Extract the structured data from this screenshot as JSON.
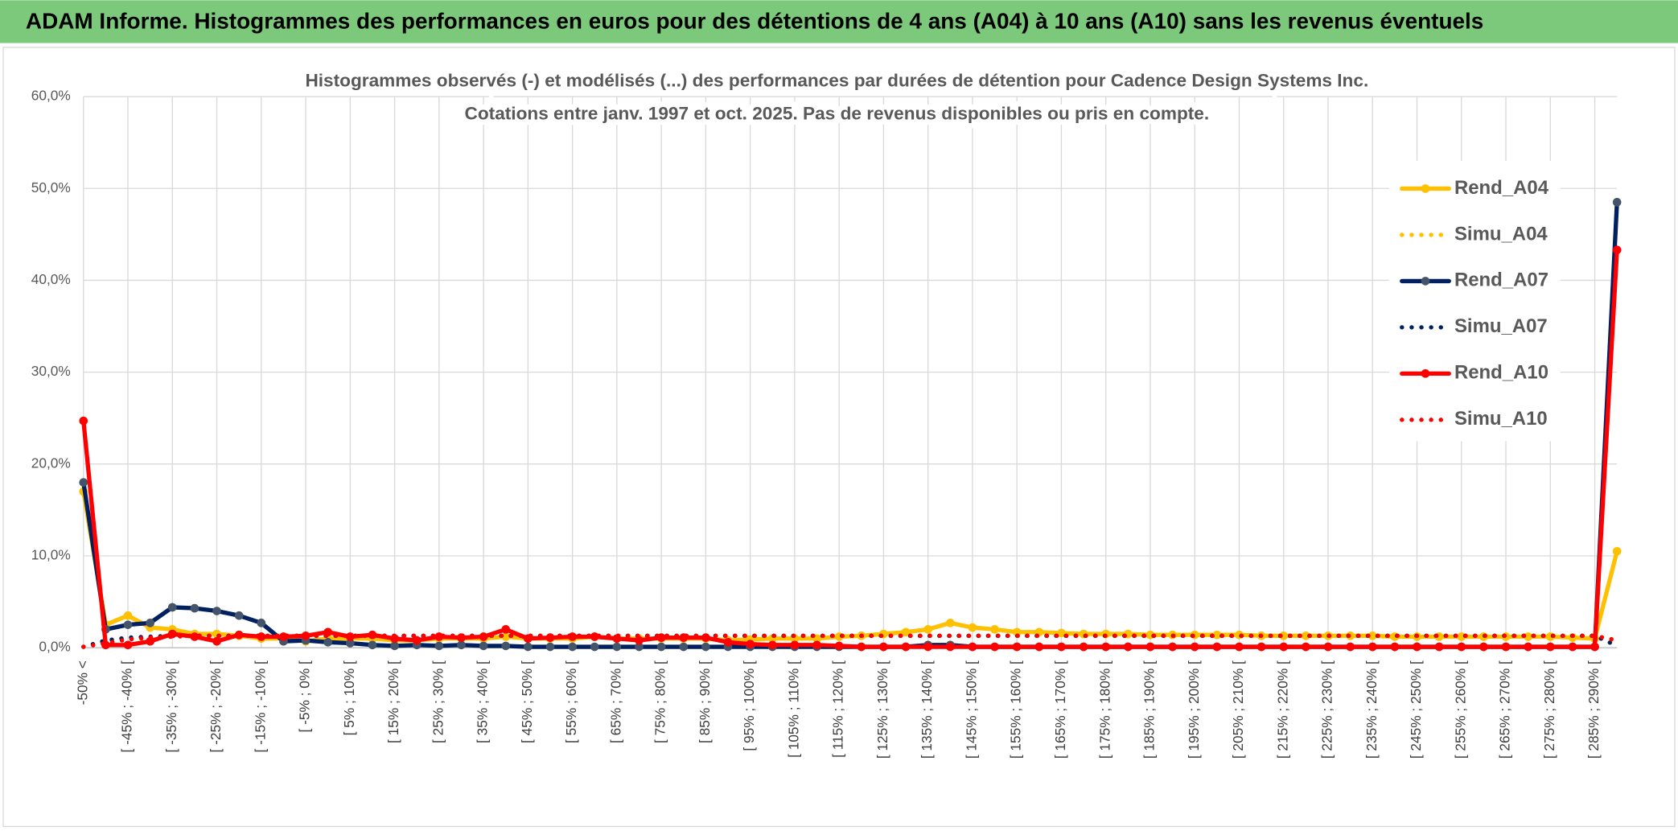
{
  "header": {
    "title": "ADAM Informe. Histogrammes des performances en euros pour des détentions de 4 ans (A04) à 10 ans (A10) sans les revenus éventuels"
  },
  "chart_data": {
    "type": "line",
    "title": "Histogrammes observés (-) et modélisés (...) des performances par durées de détention pour Cadence Design Systems Inc.",
    "subtitle": "Cotations entre janv. 1997 et oct. 2025. Pas de revenus disponibles ou pris en compte.",
    "categories": [
      "-50% <",
      null,
      "[ -45% ; -40% [",
      null,
      "[ -35% ; -30% [",
      null,
      "[ -25% ; -20% [",
      null,
      "[ -15% ; -10% [",
      null,
      "[ -5% ; 0% [",
      null,
      "[ 5% ; 10% [",
      null,
      "[ 15% ; 20% [",
      null,
      "[ 25% ; 30% [",
      null,
      "[ 35% ; 40% [",
      null,
      "[ 45% ; 50% [",
      null,
      "[ 55% ; 60% [",
      null,
      "[ 65% ; 70% [",
      null,
      "[ 75% ; 80% [",
      null,
      "[ 85% ; 90% [",
      null,
      "[ 95% ; 100% [",
      null,
      "[ 105% ; 110% [",
      null,
      "[ 115% ; 120% [",
      null,
      "[ 125% ; 130% [",
      null,
      "[ 135% ; 140% [",
      null,
      "[ 145% ; 150% [",
      null,
      "[ 155% ; 160% [",
      null,
      "[ 165% ; 170% [",
      null,
      "[ 175% ; 180% [",
      null,
      "[ 185% ; 190% [",
      null,
      "[ 195% ; 200% [",
      null,
      "[ 205% ; 210% [",
      null,
      "[ 215% ; 220% [",
      null,
      "[ 225% ; 230% [",
      null,
      "[ 235% ; 240% [",
      null,
      "[ 245% ; 250% [",
      null,
      "[ 255% ; 260% [",
      null,
      "[ 265% ; 270% [",
      null,
      "[ 275% ; 280% [",
      null,
      "[ 285% ; 290% [",
      null
    ],
    "series": [
      {
        "name": "Rend_A04",
        "color": "#FFC000",
        "dotted": false,
        "values": [
          17,
          2.5,
          3.5,
          2.2,
          2,
          1.5,
          1.5,
          1.3,
          1,
          1,
          0.7,
          1,
          1,
          1,
          0.8,
          0.8,
          1,
          1,
          1,
          1.2,
          1,
          1,
          1,
          1.2,
          1,
          1,
          1,
          1,
          1,
          0.8,
          0.9,
          1,
          1,
          1,
          1.2,
          1.3,
          1.5,
          1.7,
          2,
          2.7,
          2.2,
          2,
          1.7,
          1.7,
          1.6,
          1.5,
          1.5,
          1.5,
          1.4,
          1.4,
          1.4,
          1.4,
          1.4,
          1.3,
          1.3,
          1.3,
          1.3,
          1.3,
          1.3,
          1.2,
          1.2,
          1.2,
          1.2,
          1.2,
          1.2,
          1.2,
          1.2,
          1.1,
          1,
          10.5
        ]
      },
      {
        "name": "Simu_A04",
        "color": "#FFC000",
        "dotted": true,
        "values": [
          0.1,
          0.7,
          1,
          1.1,
          1.2,
          1.3,
          1.3,
          1.3,
          1.3,
          1.3,
          1.3,
          1.3,
          1.3,
          1.3,
          1.3,
          1.3,
          1.3,
          1.3,
          1.3,
          1.3,
          1.3,
          1.3,
          1.3,
          1.3,
          1.3,
          1.3,
          1.3,
          1.3,
          1.3,
          1.3,
          1.3,
          1.3,
          1.3,
          1.3,
          1.3,
          1.3,
          1.3,
          1.3,
          1.3,
          1.3,
          1.3,
          1.3,
          1.3,
          1.3,
          1.3,
          1.3,
          1.3,
          1.3,
          1.3,
          1.3,
          1.3,
          1.3,
          1.3,
          1.3,
          1.3,
          1.3,
          1.3,
          1.3,
          1.3,
          1.3,
          1.3,
          1.3,
          1.3,
          1.3,
          1.3,
          1.3,
          1.3,
          1.3,
          1.3,
          0.3
        ]
      },
      {
        "name": "Rend_A07",
        "color": "#002060",
        "marker": "#44546A",
        "dotted": false,
        "values": [
          18,
          2,
          2.5,
          2.7,
          4.4,
          4.3,
          4,
          3.5,
          2.7,
          0.7,
          0.8,
          0.6,
          0.5,
          0.3,
          0.2,
          0.3,
          0.2,
          0.3,
          0.2,
          0.2,
          0.1,
          0.1,
          0.1,
          0.1,
          0.1,
          0.1,
          0.1,
          0.1,
          0.1,
          0.1,
          0.1,
          0.1,
          0.1,
          0.1,
          0.1,
          0.1,
          0.1,
          0.1,
          0.3,
          0.3,
          0.1,
          0.1,
          0.1,
          0.1,
          0.1,
          0.1,
          0.1,
          0.1,
          0.1,
          0.1,
          0.1,
          0.1,
          0.1,
          0.1,
          0.1,
          0.1,
          0.1,
          0.1,
          0.1,
          0.1,
          0.1,
          0.1,
          0.1,
          0.1,
          0.1,
          0.1,
          0.1,
          0.1,
          0.1,
          48.5
        ]
      },
      {
        "name": "Simu_A07",
        "color": "#002060",
        "dotted": true,
        "values": [
          0.1,
          0.8,
          1.1,
          1.2,
          1.3,
          1.3,
          1.3,
          1.3,
          1.3,
          1.3,
          1.3,
          1.3,
          1.3,
          1.3,
          1.3,
          1.3,
          1.3,
          1.3,
          1.3,
          1.3,
          1.3,
          1.3,
          1.3,
          1.3,
          1.3,
          1.3,
          1.3,
          1.3,
          1.3,
          1.3,
          1.3,
          1.3,
          1.3,
          1.3,
          1.3,
          1.3,
          1.3,
          1.3,
          1.3,
          1.3,
          1.3,
          1.3,
          1.3,
          1.3,
          1.3,
          1.3,
          1.3,
          1.3,
          1.3,
          1.3,
          1.3,
          1.3,
          1.3,
          1.3,
          1.3,
          1.3,
          1.3,
          1.3,
          1.3,
          1.3,
          1.3,
          1.3,
          1.3,
          1.3,
          1.3,
          1.3,
          1.3,
          1.3,
          1.3,
          0.2
        ]
      },
      {
        "name": "Rend_A10",
        "color": "#FF0000",
        "dotted": false,
        "values": [
          24.7,
          0.3,
          0.3,
          0.7,
          1.5,
          1.2,
          0.7,
          1.4,
          1.2,
          1.2,
          1.3,
          1.7,
          1.2,
          1.4,
          1,
          0.8,
          1.2,
          1.1,
          1.2,
          2,
          1,
          1.1,
          1.2,
          1.2,
          1,
          0.8,
          1.1,
          1.1,
          1.1,
          0.6,
          0.4,
          0.3,
          0.3,
          0.3,
          0.2,
          0.1,
          0.1,
          0.1,
          0.1,
          0.1,
          0.1,
          0.1,
          0.1,
          0.1,
          0.1,
          0.1,
          0.1,
          0.1,
          0.1,
          0.1,
          0.1,
          0.1,
          0.1,
          0.1,
          0.1,
          0.1,
          0.1,
          0.1,
          0.1,
          0.1,
          0.1,
          0.1,
          0.1,
          0.1,
          0.1,
          0.1,
          0.1,
          0.1,
          0.1,
          43.3
        ]
      },
      {
        "name": "Simu_A10",
        "color": "#FF0000",
        "dotted": true,
        "values": [
          0.1,
          0.5,
          0.9,
          1.1,
          1.2,
          1.3,
          1.3,
          1.3,
          1.3,
          1.3,
          1.3,
          1.3,
          1.3,
          1.3,
          1.3,
          1.3,
          1.3,
          1.3,
          1.3,
          1.3,
          1.3,
          1.3,
          1.3,
          1.3,
          1.3,
          1.3,
          1.3,
          1.3,
          1.3,
          1.3,
          1.3,
          1.3,
          1.3,
          1.3,
          1.3,
          1.3,
          1.3,
          1.3,
          1.3,
          1.3,
          1.3,
          1.3,
          1.3,
          1.3,
          1.3,
          1.3,
          1.3,
          1.3,
          1.3,
          1.3,
          1.3,
          1.3,
          1.3,
          1.3,
          1.3,
          1.3,
          1.3,
          1.3,
          1.3,
          1.3,
          1.3,
          1.3,
          1.3,
          1.3,
          1.3,
          1.3,
          1.3,
          1.3,
          1.3,
          0.8
        ]
      }
    ],
    "ylim": [
      0,
      60
    ],
    "yticks": [
      {
        "value": 0,
        "label": "0,0%"
      },
      {
        "value": 10,
        "label": "10,0%"
      },
      {
        "value": 20,
        "label": "20,0%"
      },
      {
        "value": 30,
        "label": "30,0%"
      },
      {
        "value": 40,
        "label": "40,0%"
      },
      {
        "value": 50,
        "label": "50,0%"
      },
      {
        "value": 60,
        "label": "60,0%"
      }
    ],
    "grid": true,
    "legend": "right"
  }
}
